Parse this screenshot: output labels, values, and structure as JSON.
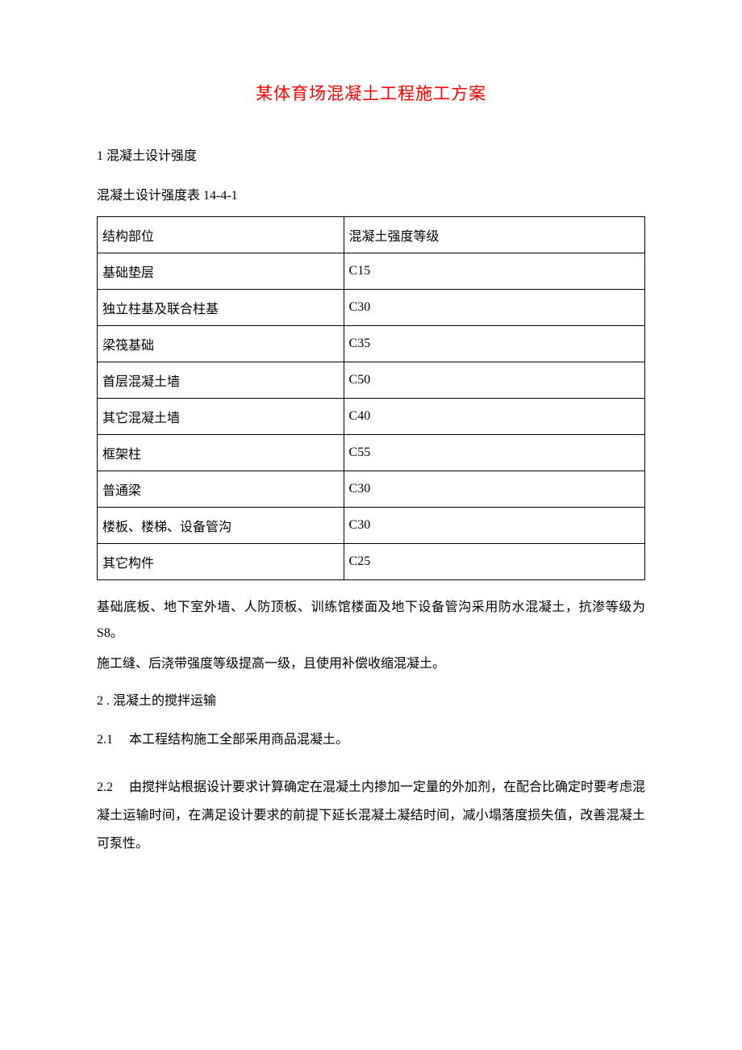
{
  "document": {
    "title": "某体育场混凝土工程施工方案",
    "title_color": "#ff0000",
    "text_color": "#000000",
    "background_color": "#ffffff",
    "font_family": "SimSun",
    "title_fontsize": 21,
    "body_fontsize": 16
  },
  "section1": {
    "heading": "1 混凝土设计强度",
    "table_caption": "混凝土设计强度表 14-4-1",
    "table": {
      "border_color": "#000000",
      "columns": [
        "结构部位",
        "混凝土强度等级"
      ],
      "rows": [
        [
          "基础垫层",
          "C15"
        ],
        [
          "独立柱基及联合柱基",
          "C30"
        ],
        [
          "梁筏基础",
          "C35"
        ],
        [
          "首层混凝土墙",
          "C50"
        ],
        [
          "其它混凝土墙",
          "C40"
        ],
        [
          "框架柱",
          "C55"
        ],
        [
          "普通梁",
          "C30"
        ],
        [
          "楼板、楼梯、设备管沟",
          "C30"
        ],
        [
          "其它构件",
          "C25"
        ]
      ]
    },
    "paragraph1": "基础底板、地下室外墙、人防顶板、训练馆楼面及地下设备管沟采用防水混凝土，抗渗等级为 S8。",
    "paragraph2": "施工缝、后浇带强度等级提高一级，且使用补偿收缩混凝土。"
  },
  "section2": {
    "heading": "2 . 混凝土的搅拌运输",
    "item2_1_number": "2.1",
    "item2_1_text": "本工程结构施工全部采用商品混凝土。",
    "item2_2_number": "2.2",
    "item2_2_text": "由搅拌站根据设计要求计算确定在混凝土内掺加一定量的外加剂，在配合比确定时要考虑混凝土运输时间，在满足设计要求的前提下延长混凝土凝结时间，减小塌落度损失值，改善混凝土可泵性。"
  }
}
